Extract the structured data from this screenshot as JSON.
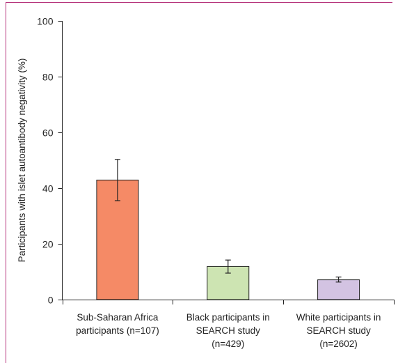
{
  "chart_data": {
    "type": "bar",
    "title": "",
    "xlabel": "",
    "ylabel": "Participants with islet autoantibody negativity (%)",
    "ylim": [
      0,
      100
    ],
    "yticks": [
      0,
      20,
      40,
      60,
      80,
      100
    ],
    "grid": false,
    "categories": [
      [
        "Sub-Saharan Africa",
        "participants (n=107)"
      ],
      [
        "Black participants in",
        "SEARCH study",
        "(n=429)"
      ],
      [
        "White participants in",
        "SEARCH study",
        "(n=2602)"
      ]
    ],
    "values": [
      42.9,
      11.9,
      7.1
    ],
    "error_low": [
      35.5,
      9.5,
      6.3
    ],
    "error_high": [
      50.3,
      14.2,
      8.1
    ],
    "colors": [
      "#f58a66",
      "#cde4b2",
      "#d3c3e2"
    ],
    "frame_color": "#b5317a"
  }
}
